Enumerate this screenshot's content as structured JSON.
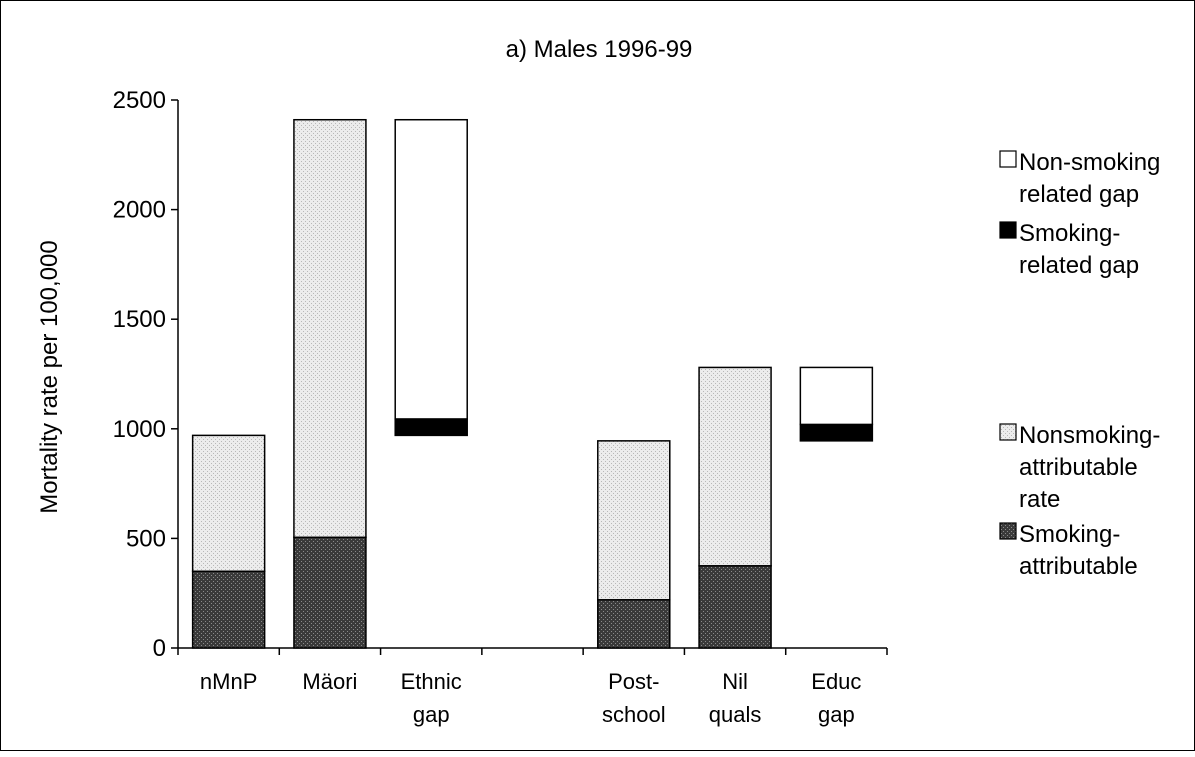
{
  "chart_data": {
    "type": "bar",
    "title": "a) Males 1996-99",
    "ylabel": "Mortality rate per 100,000",
    "xlabel": "",
    "ylim": [
      0,
      2500
    ],
    "yticks": [
      0,
      500,
      1000,
      1500,
      2000,
      2500
    ],
    "grid": false,
    "legend_position": "right",
    "categories": [
      {
        "lines": [
          "nMnP"
        ]
      },
      {
        "lines": [
          "Mäori"
        ]
      },
      {
        "lines": [
          "Ethnic",
          "gap"
        ]
      },
      {
        "lines": []
      },
      {
        "lines": [
          "Post-",
          "school"
        ]
      },
      {
        "lines": [
          "Nil",
          "quals"
        ]
      },
      {
        "lines": [
          "Educ",
          "gap"
        ]
      }
    ],
    "series": [
      {
        "name": "Smoking-attributable",
        "pattern": "dark-stipple",
        "values": [
          350,
          505,
          null,
          null,
          220,
          375,
          null
        ]
      },
      {
        "name": "Nonsmoking-attributable rate",
        "pattern": "light-stipple",
        "values": [
          620,
          1905,
          null,
          null,
          725,
          905,
          null
        ]
      },
      {
        "name": "Smoking-related gap",
        "pattern": "black",
        "floating_base": [
          null,
          null,
          970,
          null,
          null,
          null,
          945
        ],
        "values": [
          null,
          null,
          75,
          null,
          null,
          null,
          75
        ]
      },
      {
        "name": "Non-smoking related gap",
        "pattern": "white",
        "values": [
          null,
          null,
          1365,
          null,
          null,
          null,
          260
        ]
      }
    ],
    "legend": [
      {
        "key": "non_smoking_gap",
        "pattern": "white",
        "lines": [
          "Non-smoking",
          "related gap"
        ]
      },
      {
        "key": "smoking_gap",
        "pattern": "black",
        "lines": [
          "Smoking-",
          "related gap"
        ]
      },
      {
        "key": "nonsmoking_attr",
        "pattern": "light-stipple",
        "lines": [
          "Nonsmoking-",
          "attributable",
          "rate"
        ]
      },
      {
        "key": "smoking_attr",
        "pattern": "dark-stipple",
        "lines": [
          "Smoking-",
          "attributable"
        ]
      }
    ]
  },
  "colors": {
    "dark_stipple": "#3a3a3a",
    "light_stipple": "#e6e6e6",
    "solid_black": "#000000",
    "white": "#ffffff"
  }
}
